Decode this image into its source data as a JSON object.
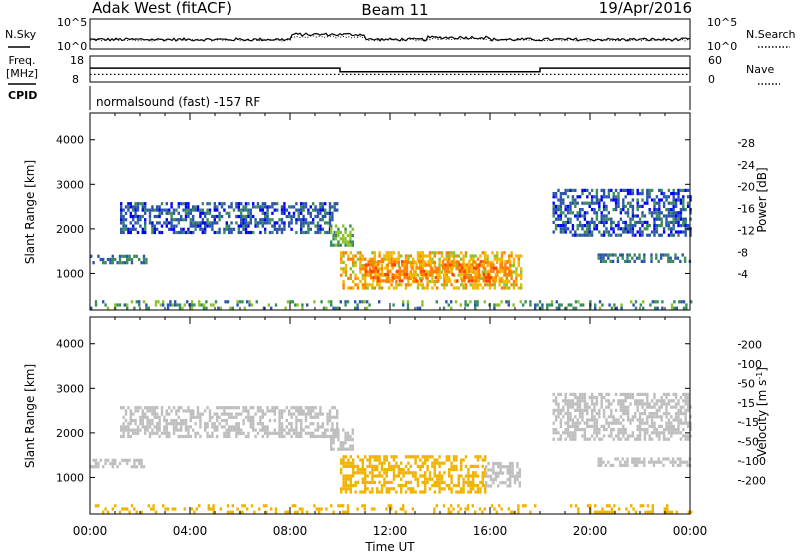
{
  "header": {
    "station": "Adak West (fitACF)",
    "beam": "Beam 11",
    "date": "19/Apr/2016"
  },
  "params_panel": {
    "nsky_label": "N.Sky",
    "nsearch_label": "N.Search",
    "freq_label": "Freq.",
    "freq_unit": "[MHz]",
    "nave_label": "Nave",
    "cpid_label": "CPID",
    "noise_ticks_left": [
      "10^5",
      "10^0"
    ],
    "noise_ticks_right": [
      "10^5",
      "10^0"
    ],
    "freq_ticks": [
      "18",
      "8"
    ],
    "nave_ticks": [
      "60",
      "0"
    ],
    "cpid_text": "normalsound (fast) -157 RF",
    "freq_steps": [
      {
        "start_h": 0,
        "end_h": 10,
        "mhz": 13.5
      },
      {
        "start_h": 10,
        "end_h": 18,
        "mhz": 11.5
      },
      {
        "start_h": 18,
        "end_h": 24,
        "mhz": 13.5
      }
    ],
    "nave_level": 12
  },
  "time_axis": {
    "xlabel": "Time UT",
    "ticks": [
      "00:00",
      "04:00",
      "08:00",
      "12:00",
      "16:00",
      "20:00",
      "00:00"
    ]
  },
  "colors": {
    "power_scale": [
      "#0000ff",
      "#2a55a8",
      "#3a8c5a",
      "#8ec22b",
      "#f2b800",
      "#ff8000",
      "#ff4000",
      "#e00000"
    ],
    "velocity_scale": [
      "#e00000",
      "#ff4000",
      "#ff8c00",
      "#f0b400",
      "#bebebe",
      "#78c83c",
      "#3a8c5a",
      "#2a55a8",
      "#0000c8"
    ]
  },
  "chart_data": [
    {
      "type": "heatmap",
      "title": "Power",
      "xlabel": "",
      "ylabel": "Slant Range [km]",
      "xlim": [
        0,
        24
      ],
      "ylim": [
        180,
        4600
      ],
      "yticks": [
        "1000",
        "2000",
        "3000",
        "4000"
      ],
      "colorbar": {
        "label": "Power [dB]",
        "ticks": [
          "28",
          "24",
          "20",
          "16",
          "12",
          "8",
          "4"
        ],
        "range": [
          0,
          32
        ]
      },
      "echo_regions": [
        {
          "t0": 0.0,
          "t1": 2.3,
          "r0": 1230,
          "r1": 1420,
          "value": 8
        },
        {
          "t0": 1.2,
          "t1": 9.9,
          "r0": 1900,
          "r1": 2600,
          "value": 6
        },
        {
          "t0": 9.6,
          "t1": 10.5,
          "r0": 1600,
          "r1": 2100,
          "value": 12
        },
        {
          "t0": 10.0,
          "t1": 17.2,
          "r0": 650,
          "r1": 1500,
          "value": 18
        },
        {
          "t0": 11.0,
          "t1": 16.8,
          "r0": 800,
          "r1": 1300,
          "value": 22
        },
        {
          "t0": 18.5,
          "t1": 24.0,
          "r0": 1850,
          "r1": 2900,
          "value": 6
        },
        {
          "t0": 20.3,
          "t1": 24.0,
          "r0": 1250,
          "r1": 1450,
          "value": 8
        },
        {
          "t0": 0.0,
          "t1": 24.0,
          "r0": 200,
          "r1": 400,
          "value": 10
        }
      ]
    },
    {
      "type": "heatmap",
      "title": "Velocity",
      "xlabel": "Time UT",
      "ylabel": "Slant Range [km]",
      "xlim": [
        0,
        24
      ],
      "ylim": [
        180,
        4600
      ],
      "yticks": [
        "1000",
        "2000",
        "3000",
        "4000"
      ],
      "colorbar": {
        "label": "Velocity [m s-1]",
        "ticks": [
          "200",
          "100",
          "50",
          "15",
          "-15",
          "-50",
          "-100",
          "-200"
        ],
        "range": [
          -240,
          240
        ]
      },
      "echo_regions": [
        {
          "t0": 0.0,
          "t1": 2.3,
          "r0": 1230,
          "r1": 1420,
          "value": 0
        },
        {
          "t0": 1.2,
          "t1": 9.9,
          "r0": 1900,
          "r1": 2600,
          "value": 0
        },
        {
          "t0": 9.6,
          "t1": 10.5,
          "r0": 1600,
          "r1": 2100,
          "value": -10
        },
        {
          "t0": 10.0,
          "t1": 15.8,
          "r0": 650,
          "r1": 1500,
          "value": -40
        },
        {
          "t0": 15.8,
          "t1": 17.2,
          "r0": 800,
          "r1": 1350,
          "value": 0
        },
        {
          "t0": 18.5,
          "t1": 24.0,
          "r0": 1850,
          "r1": 2900,
          "value": 0
        },
        {
          "t0": 20.3,
          "t1": 24.0,
          "r0": 1250,
          "r1": 1450,
          "value": 0
        },
        {
          "t0": 0.0,
          "t1": 24.0,
          "r0": 200,
          "r1": 400,
          "value": -45
        }
      ]
    }
  ]
}
